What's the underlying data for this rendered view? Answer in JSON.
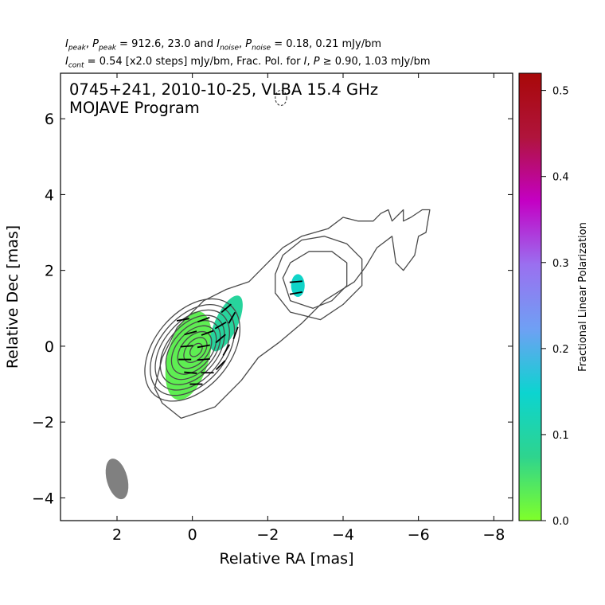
{
  "header": {
    "line1": {
      "i_peak": "I",
      "i_peak_sub": "peak",
      "p_peak": "P",
      "p_peak_sub": "peak",
      "peak_values": " = 912.6, 23.0 and ",
      "i_noise": "I",
      "i_noise_sub": "noise",
      "p_noise": "P",
      "p_noise_sub": "noise",
      "noise_values": " = 0.18, 0.21 mJy/bm"
    },
    "line2": {
      "i_cont": "I",
      "i_cont_sub": "cont",
      "cont_text": " = 0.54 [x2.0 steps] mJy/bm, Frac. Pol. for ",
      "i_sym": "I",
      "p_sym": "P",
      "tail_text": " ≥ 0.90, 1.03 mJy/bm"
    }
  },
  "chart_data": {
    "type": "contour",
    "title": "0745+241, 2010-10-25, VLBA 15.4 GHz",
    "subtitle": "MOJAVE Program",
    "xlabel": "Relative RA [mas]",
    "ylabel": "Relative Dec [mas]",
    "xlim": [
      3.5,
      -8.5
    ],
    "ylim": [
      -4.6,
      7.2
    ],
    "x_ticks": [
      2,
      0,
      -2,
      -4,
      -6,
      -8
    ],
    "x_tick_labels": [
      "2",
      "0",
      "−2",
      "−4",
      "−6",
      "−8"
    ],
    "y_ticks": [
      6,
      4,
      2,
      0,
      -2,
      -4
    ],
    "y_tick_labels": [
      "6",
      "4",
      "2",
      "0",
      "−2",
      "−4"
    ],
    "grid": false,
    "beam": {
      "ra": 2.0,
      "dec": -3.5,
      "major": 1.1,
      "minor": 0.55,
      "pa_deg": -15,
      "color": "#808080"
    },
    "contour_color": "#4a4a4a",
    "core_contours": [
      {
        "cx": 0.0,
        "cy": -0.1,
        "a": 1.55,
        "b": 1.0,
        "rot": 40
      },
      {
        "cx": 0.0,
        "cy": -0.1,
        "a": 1.38,
        "b": 0.88,
        "rot": 40
      },
      {
        "cx": 0.0,
        "cy": -0.1,
        "a": 1.22,
        "b": 0.77,
        "rot": 40
      },
      {
        "cx": 0.0,
        "cy": -0.1,
        "a": 1.06,
        "b": 0.66,
        "rot": 40
      },
      {
        "cx": -0.02,
        "cy": -0.1,
        "a": 0.9,
        "b": 0.56,
        "rot": 40
      },
      {
        "cx": -0.04,
        "cy": -0.1,
        "a": 0.74,
        "b": 0.46,
        "rot": 40
      },
      {
        "cx": -0.06,
        "cy": -0.1,
        "a": 0.56,
        "b": 0.35,
        "rot": 40
      },
      {
        "cx": -0.08,
        "cy": -0.1,
        "a": 0.38,
        "b": 0.24,
        "rot": 40
      },
      {
        "cx": -0.1,
        "cy": -0.1,
        "a": 0.2,
        "b": 0.13,
        "rot": 40
      }
    ],
    "outer_contours": [
      [
        [
          0.8,
          -1.5
        ],
        [
          0.3,
          -1.9
        ],
        [
          -0.6,
          -1.6
        ],
        [
          -1.3,
          -0.9
        ],
        [
          -1.75,
          -0.3
        ],
        [
          -2.3,
          0.1
        ],
        [
          -2.9,
          0.6
        ],
        [
          -3.5,
          1.2
        ],
        [
          -4.3,
          1.7
        ],
        [
          -4.6,
          2.1
        ],
        [
          -4.9,
          2.6
        ],
        [
          -5.3,
          2.9
        ],
        [
          -5.4,
          2.2
        ],
        [
          -5.6,
          2.0
        ],
        [
          -5.9,
          2.4
        ],
        [
          -6.0,
          2.9
        ],
        [
          -6.2,
          3.0
        ],
        [
          -6.3,
          3.6
        ],
        [
          -6.1,
          3.6
        ],
        [
          -5.8,
          3.4
        ],
        [
          -5.6,
          3.3
        ],
        [
          -5.6,
          3.6
        ],
        [
          -5.3,
          3.3
        ],
        [
          -5.2,
          3.6
        ],
        [
          -5.0,
          3.5
        ],
        [
          -4.8,
          3.3
        ],
        [
          -4.4,
          3.3
        ],
        [
          -4.0,
          3.4
        ],
        [
          -3.6,
          3.1
        ],
        [
          -2.9,
          2.9
        ],
        [
          -2.4,
          2.6
        ],
        [
          -2.0,
          2.2
        ],
        [
          -1.5,
          1.7
        ],
        [
          -0.9,
          1.5
        ],
        [
          -0.3,
          1.2
        ],
        [
          0.4,
          0.5
        ],
        [
          0.8,
          -0.3
        ],
        [
          1.0,
          -1.1
        ],
        [
          0.8,
          -1.5
        ]
      ],
      [
        [
          -2.2,
          1.9
        ],
        [
          -2.4,
          2.4
        ],
        [
          -2.9,
          2.8
        ],
        [
          -3.5,
          2.9
        ],
        [
          -4.1,
          2.7
        ],
        [
          -4.5,
          2.3
        ],
        [
          -4.5,
          1.6
        ],
        [
          -4.0,
          1.1
        ],
        [
          -3.4,
          0.7
        ],
        [
          -2.6,
          0.9
        ],
        [
          -2.2,
          1.4
        ],
        [
          -2.2,
          1.9
        ]
      ],
      [
        [
          -2.4,
          1.8
        ],
        [
          -2.6,
          2.2
        ],
        [
          -3.1,
          2.5
        ],
        [
          -3.7,
          2.5
        ],
        [
          -4.1,
          2.2
        ],
        [
          -4.1,
          1.6
        ],
        [
          -3.7,
          1.2
        ],
        [
          -3.2,
          1.0
        ],
        [
          -2.6,
          1.2
        ],
        [
          -2.4,
          1.8
        ]
      ]
    ],
    "negative_contour": {
      "ra": -2.35,
      "dec": 6.55,
      "rx": 0.15,
      "ry": 0.2
    },
    "colorbar": {
      "label": "Fractional Linear Polarization",
      "range": [
        0.0,
        0.52
      ],
      "tick_values": [
        0.0,
        0.1,
        0.2,
        0.3,
        0.4,
        0.5
      ],
      "tick_labels": [
        "0.0",
        "0.1",
        "0.2",
        "0.3",
        "0.4",
        "0.5"
      ],
      "colors": [
        "#7fff2a",
        "#2ed48e",
        "#0cd4d0",
        "#6fa0f4",
        "#9a70f0",
        "#c400c4",
        "#b0143c",
        "#a80808"
      ]
    },
    "polarization_regions": [
      {
        "ra": 0.1,
        "dec": -0.25,
        "rx": 0.55,
        "ry": 1.2,
        "rot": 15,
        "frac": 0.03
      },
      {
        "ra": -0.9,
        "dec": 0.6,
        "rx": 0.3,
        "ry": 0.8,
        "rot": 25,
        "frac": 0.09
      },
      {
        "ra": -2.8,
        "dec": 1.6,
        "rx": 0.18,
        "ry": 0.3,
        "rot": 0,
        "frac": 0.14
      }
    ],
    "evpa_ticks": [
      {
        "ra": 0.25,
        "dec": 0.7,
        "ang": 10
      },
      {
        "ra": -0.3,
        "dec": 0.7,
        "ang": 20
      },
      {
        "ra": 0.05,
        "dec": 0.35,
        "ang": 15
      },
      {
        "ra": -0.4,
        "dec": 0.35,
        "ang": 20
      },
      {
        "ra": -0.75,
        "dec": 0.55,
        "ang": 30
      },
      {
        "ra": 0.15,
        "dec": 0.0,
        "ang": 5
      },
      {
        "ra": -0.3,
        "dec": 0.0,
        "ang": 10
      },
      {
        "ra": -0.75,
        "dec": 0.2,
        "ang": 40
      },
      {
        "ra": 0.2,
        "dec": -0.35,
        "ang": 0
      },
      {
        "ra": -0.3,
        "dec": -0.35,
        "ang": 5
      },
      {
        "ra": 0.05,
        "dec": -0.7,
        "ang": -5
      },
      {
        "ra": -0.4,
        "dec": -0.7,
        "ang": 0
      },
      {
        "ra": -0.9,
        "dec": 1.0,
        "ang": 40
      },
      {
        "ra": -1.05,
        "dec": 0.75,
        "ang": 60
      },
      {
        "ra": -1.15,
        "dec": 0.35,
        "ang": 70
      },
      {
        "ra": -0.9,
        "dec": -0.1,
        "ang": 60
      },
      {
        "ra": -0.75,
        "dec": -0.5,
        "ang": 45
      },
      {
        "ra": -0.1,
        "dec": -1.0,
        "ang": 0
      },
      {
        "ra": -2.75,
        "dec": 1.7,
        "ang": 5
      },
      {
        "ra": -2.75,
        "dec": 1.4,
        "ang": 10
      }
    ]
  }
}
